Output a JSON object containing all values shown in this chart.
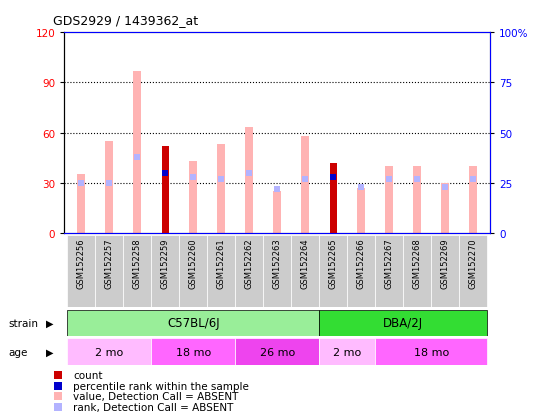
{
  "title": "GDS2929 / 1439362_at",
  "samples": [
    "GSM152256",
    "GSM152257",
    "GSM152258",
    "GSM152259",
    "GSM152260",
    "GSM152261",
    "GSM152262",
    "GSM152263",
    "GSM152264",
    "GSM152265",
    "GSM152266",
    "GSM152267",
    "GSM152268",
    "GSM152269",
    "GSM152270"
  ],
  "count_values": [
    0,
    0,
    0,
    52,
    0,
    0,
    0,
    0,
    0,
    42,
    0,
    0,
    0,
    0,
    0
  ],
  "percentile_values": [
    0,
    0,
    0,
    30,
    0,
    0,
    0,
    0,
    0,
    28,
    0,
    0,
    0,
    0,
    0
  ],
  "value_absent": [
    35,
    55,
    97,
    0,
    43,
    53,
    63,
    25,
    58,
    0,
    27,
    40,
    40,
    30,
    40
  ],
  "rank_absent": [
    25,
    25,
    38,
    0,
    28,
    27,
    30,
    22,
    27,
    0,
    23,
    27,
    27,
    23,
    27
  ],
  "count_color": "#cc0000",
  "percentile_color": "#0000cc",
  "value_absent_color": "#ffb3b3",
  "rank_absent_color": "#b3b3ff",
  "left_ylim": [
    0,
    120
  ],
  "right_ylim": [
    0,
    100
  ],
  "left_yticks": [
    0,
    30,
    60,
    90,
    120
  ],
  "right_yticks": [
    0,
    25,
    50,
    75,
    100
  ],
  "right_yticklabels": [
    "0",
    "25",
    "50",
    "75",
    "100%"
  ],
  "dotted_lines": [
    30,
    60,
    90
  ],
  "strain_groups": [
    {
      "label": "C57BL/6J",
      "start": 0,
      "end": 9,
      "color": "#99ee99"
    },
    {
      "label": "DBA/2J",
      "start": 9,
      "end": 15,
      "color": "#33dd33"
    }
  ],
  "age_groups": [
    {
      "label": "2 mo",
      "start": 0,
      "end": 3,
      "color": "#ffbbff"
    },
    {
      "label": "18 mo",
      "start": 3,
      "end": 6,
      "color": "#ff66ff"
    },
    {
      "label": "26 mo",
      "start": 6,
      "end": 9,
      "color": "#ee44ee"
    },
    {
      "label": "2 mo",
      "start": 9,
      "end": 11,
      "color": "#ffbbff"
    },
    {
      "label": "18 mo",
      "start": 11,
      "end": 15,
      "color": "#ff66ff"
    }
  ]
}
